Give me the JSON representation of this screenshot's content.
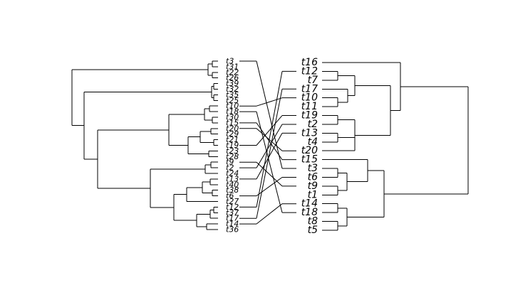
{
  "left_tree": {
    "tips": [
      "t3",
      "t31",
      "t22",
      "t26",
      "t39",
      "t32",
      "t35",
      "t25",
      "t10",
      "t18",
      "t30",
      "t15",
      "t20",
      "t29",
      "t21",
      "t19",
      "t23",
      "t28",
      "t9",
      "t2",
      "t24",
      "t13",
      "t40",
      "t38",
      "t6",
      "t27",
      "t12",
      "t37",
      "t17",
      "t14",
      "t36"
    ]
  },
  "right_tree": {
    "tips": [
      "t16",
      "t12",
      "t7",
      "t17",
      "t10",
      "t11",
      "t19",
      "t2",
      "t13",
      "t4",
      "t20",
      "t15",
      "t3",
      "t6",
      "t9",
      "t1",
      "t14",
      "t18",
      "t8",
      "t5"
    ]
  },
  "colors": {
    "line": "#000000",
    "background": "#ffffff"
  }
}
